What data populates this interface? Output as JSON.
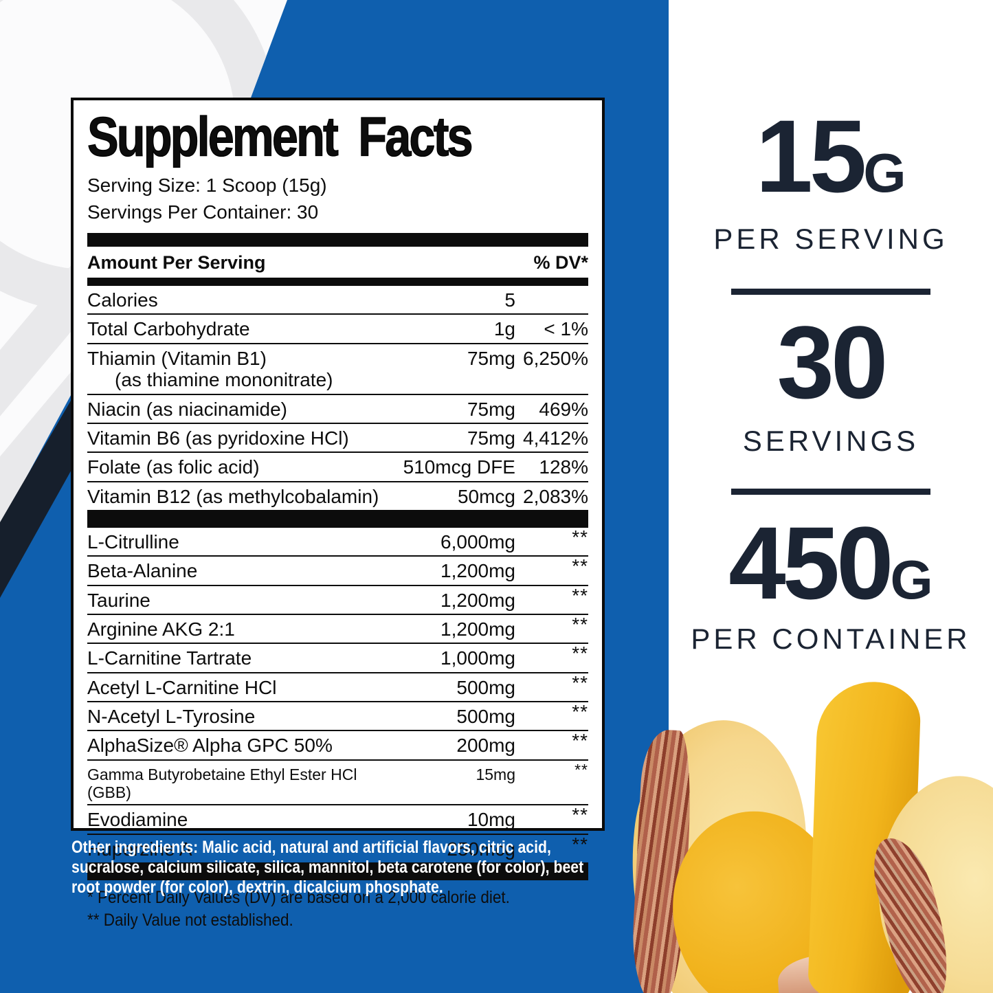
{
  "colors": {
    "brand_blue": "#0f5fae",
    "dark_navy_stripe": "#161f2c",
    "highlight_navy": "#1b2433",
    "label_black": "#0b0b0b",
    "faded_glyph_gray": "#e9e9eb",
    "mango_yellow": "#f2b51c",
    "peach_flesh": "#f6d78d",
    "peach_pit_brown": "#b0604a"
  },
  "panel": {
    "title": "Supplement Facts",
    "serving_size": "Serving Size: 1 Scoop (15g)",
    "servings_per_container": "Servings Per Container: 30",
    "header": {
      "left": "Amount Per Serving",
      "right": "% DV*"
    },
    "nutrients": [
      {
        "name": "Calories",
        "amount": "5",
        "dv": ""
      },
      {
        "name": "Total Carbohydrate",
        "amount": "1g",
        "dv": "< 1%"
      },
      {
        "name": "Thiamin (Vitamin B1)",
        "sub": "(as thiamine mononitrate)",
        "amount": "75mg",
        "dv": "6,250%"
      },
      {
        "name": "Niacin (as niacinamide)",
        "amount": "75mg",
        "dv": "469%"
      },
      {
        "name": "Vitamin B6 (as pyridoxine HCl)",
        "amount": "75mg",
        "dv": "4,412%"
      },
      {
        "name": "Folate (as folic acid)",
        "amount": "510mcg DFE",
        "dv": "128%"
      },
      {
        "name": "Vitamin B12 (as methylcobalamin)",
        "amount": "50mcg",
        "dv": "2,083%"
      }
    ],
    "actives": [
      {
        "name": "L-Citrulline",
        "amount": "6,000mg",
        "dv": "**"
      },
      {
        "name": "Beta-Alanine",
        "amount": "1,200mg",
        "dv": "**"
      },
      {
        "name": "Taurine",
        "amount": "1,200mg",
        "dv": "**"
      },
      {
        "name": "Arginine AKG 2:1",
        "amount": "1,200mg",
        "dv": "**"
      },
      {
        "name": "L-Carnitine Tartrate",
        "amount": "1,000mg",
        "dv": "**"
      },
      {
        "name": "Acetyl L-Carnitine HCl",
        "amount": "500mg",
        "dv": "**"
      },
      {
        "name": "N-Acetyl L-Tyrosine",
        "amount": "500mg",
        "dv": "**"
      },
      {
        "name": "AlphaSize® Alpha GPC 50%",
        "amount": "200mg",
        "dv": "**"
      },
      {
        "name": "Gamma Butyrobetaine Ethyl Ester HCl (GBB)",
        "amount": "15mg",
        "dv": "**",
        "small": true
      },
      {
        "name": "Evodiamine",
        "amount": "10mg",
        "dv": "**"
      },
      {
        "name": "Huperzine A",
        "amount": "250mcg",
        "dv": "**"
      }
    ],
    "footnotes": [
      "* Percent Daily Values (DV) are based on a 2,000 calorie diet.",
      "** Daily Value not established."
    ]
  },
  "other_ingredients": "Other ingredients: Malic acid, natural and artificial flavors, citric acid, sucralose, calcium silicate, silica, mannitol, beta carotene (for color), beet root powder (for color), dextrin, dicalcium phosphate.",
  "highlights": [
    {
      "value": "15",
      "unit": "G",
      "label": "PER SERVING"
    },
    {
      "value": "30",
      "unit": "",
      "label": "SERVINGS"
    },
    {
      "value": "450",
      "unit": "G",
      "label": "PER CONTAINER"
    }
  ]
}
